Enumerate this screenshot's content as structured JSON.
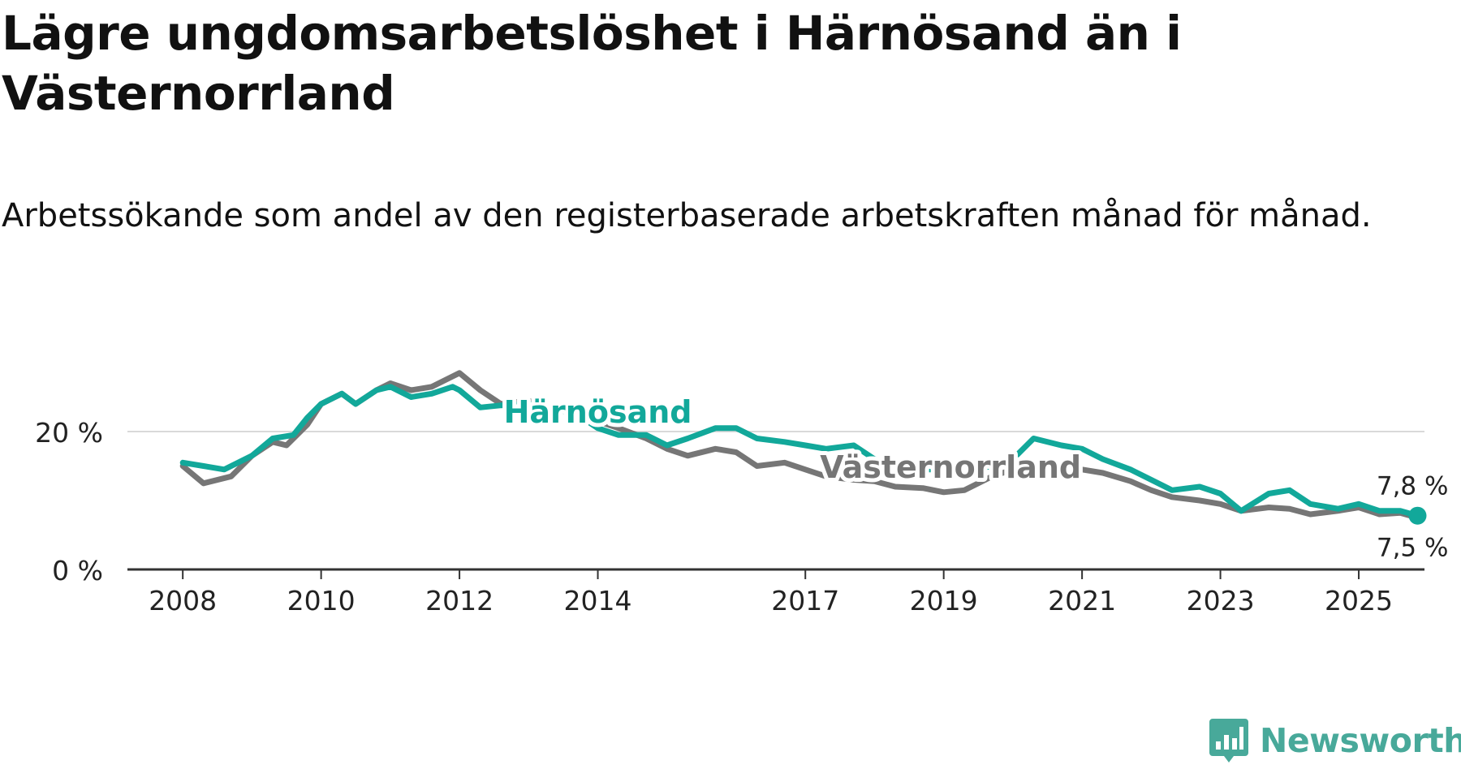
{
  "title": "Lägre ungdomsarbetslöshet i Härnösand än i Västernorrland",
  "subtitle": "Arbetssökande som andel av den registerbaserade arbetskraften månad för månad.",
  "brand": "Newsworthy",
  "colors": {
    "harnosand": "#12a89a",
    "vasternorrland": "#767676",
    "grid": "#d9d9d9",
    "axis": "#333333",
    "brand": "#48a99a"
  },
  "chart_data": {
    "type": "line",
    "title": "Lägre ungdomsarbetslöshet i Härnösand än i Västernorrland",
    "subtitle": "Arbetssökande som andel av den registerbaserade arbetskraften månad för månad.",
    "xlabel": "",
    "ylabel": "",
    "x_range": [
      2007.2,
      2025.95
    ],
    "ylim": [
      0,
      32
    ],
    "grid": true,
    "legend": "inline labels",
    "x_ticks": [
      2008,
      2010,
      2012,
      2014,
      2017,
      2019,
      2021,
      2023,
      2025
    ],
    "y_ticks": [
      {
        "value": 0,
        "label": "0 %"
      },
      {
        "value": 20,
        "label": "20 %"
      }
    ],
    "series": [
      {
        "name": "Västernorrland",
        "end_label": "7,5 %",
        "points": [
          [
            2008.0,
            15.0
          ],
          [
            2008.3,
            12.5
          ],
          [
            2008.7,
            13.5
          ],
          [
            2009.0,
            16.5
          ],
          [
            2009.3,
            18.5
          ],
          [
            2009.5,
            18.0
          ],
          [
            2009.8,
            21.0
          ],
          [
            2010.0,
            24.0
          ],
          [
            2010.3,
            25.5
          ],
          [
            2010.5,
            24.0
          ],
          [
            2010.8,
            26.0
          ],
          [
            2011.0,
            27.0
          ],
          [
            2011.3,
            26.0
          ],
          [
            2011.6,
            26.5
          ],
          [
            2011.9,
            28.0
          ],
          [
            2012.0,
            28.5
          ],
          [
            2012.3,
            26.0
          ],
          [
            2012.6,
            24.0
          ],
          [
            2013.0,
            24.5
          ],
          [
            2013.3,
            23.0
          ],
          [
            2013.7,
            23.8
          ],
          [
            2014.0,
            21.5
          ],
          [
            2014.3,
            20.5
          ],
          [
            2014.7,
            19.0
          ],
          [
            2015.0,
            17.5
          ],
          [
            2015.3,
            16.5
          ],
          [
            2015.7,
            17.5
          ],
          [
            2016.0,
            17.0
          ],
          [
            2016.3,
            15.0
          ],
          [
            2016.7,
            15.5
          ],
          [
            2017.0,
            14.5
          ],
          [
            2017.3,
            13.5
          ],
          [
            2017.7,
            13.0
          ],
          [
            2018.0,
            12.8
          ],
          [
            2018.3,
            12.0
          ],
          [
            2018.7,
            11.8
          ],
          [
            2019.0,
            11.2
          ],
          [
            2019.3,
            11.5
          ],
          [
            2019.7,
            13.5
          ],
          [
            2020.0,
            14.5
          ],
          [
            2020.3,
            15.5
          ],
          [
            2020.7,
            15.0
          ],
          [
            2021.0,
            14.5
          ],
          [
            2021.3,
            14.0
          ],
          [
            2021.7,
            12.8
          ],
          [
            2022.0,
            11.5
          ],
          [
            2022.3,
            10.5
          ],
          [
            2022.7,
            10.0
          ],
          [
            2023.0,
            9.5
          ],
          [
            2023.3,
            8.5
          ],
          [
            2023.7,
            9.0
          ],
          [
            2024.0,
            8.8
          ],
          [
            2024.3,
            8.0
          ],
          [
            2024.7,
            8.5
          ],
          [
            2025.0,
            9.0
          ],
          [
            2025.3,
            8.0
          ],
          [
            2025.6,
            8.2
          ],
          [
            2025.85,
            7.5
          ]
        ]
      },
      {
        "name": "Härnösand",
        "end_label": "7,8 %",
        "points": [
          [
            2008.0,
            15.5
          ],
          [
            2008.3,
            15.0
          ],
          [
            2008.6,
            14.5
          ],
          [
            2009.0,
            16.5
          ],
          [
            2009.3,
            19.0
          ],
          [
            2009.6,
            19.5
          ],
          [
            2009.8,
            22.0
          ],
          [
            2010.0,
            24.0
          ],
          [
            2010.3,
            25.5
          ],
          [
            2010.5,
            24.0
          ],
          [
            2010.8,
            26.0
          ],
          [
            2011.0,
            26.5
          ],
          [
            2011.3,
            25.0
          ],
          [
            2011.6,
            25.5
          ],
          [
            2011.9,
            26.5
          ],
          [
            2012.0,
            26.0
          ],
          [
            2012.3,
            23.5
          ],
          [
            2012.6,
            23.8
          ],
          [
            2013.0,
            24.0
          ],
          [
            2013.3,
            23.5
          ],
          [
            2013.7,
            22.5
          ],
          [
            2014.0,
            20.5
          ],
          [
            2014.3,
            19.5
          ],
          [
            2014.7,
            19.5
          ],
          [
            2015.0,
            18.0
          ],
          [
            2015.3,
            19.0
          ],
          [
            2015.7,
            20.5
          ],
          [
            2016.0,
            20.5
          ],
          [
            2016.3,
            19.0
          ],
          [
            2016.7,
            18.5
          ],
          [
            2017.0,
            18.0
          ],
          [
            2017.3,
            17.5
          ],
          [
            2017.7,
            18.0
          ],
          [
            2018.0,
            16.0
          ],
          [
            2018.3,
            15.0
          ],
          [
            2018.7,
            14.5
          ],
          [
            2019.0,
            14.5
          ],
          [
            2019.3,
            14.2
          ],
          [
            2019.7,
            15.0
          ],
          [
            2020.0,
            16.0
          ],
          [
            2020.3,
            19.0
          ],
          [
            2020.7,
            18.0
          ],
          [
            2021.0,
            17.5
          ],
          [
            2021.3,
            16.0
          ],
          [
            2021.7,
            14.5
          ],
          [
            2022.0,
            13.0
          ],
          [
            2022.3,
            11.5
          ],
          [
            2022.7,
            12.0
          ],
          [
            2023.0,
            11.0
          ],
          [
            2023.3,
            8.5
          ],
          [
            2023.7,
            11.0
          ],
          [
            2024.0,
            11.5
          ],
          [
            2024.3,
            9.5
          ],
          [
            2024.7,
            8.8
          ],
          [
            2025.0,
            9.5
          ],
          [
            2025.3,
            8.5
          ],
          [
            2025.6,
            8.5
          ],
          [
            2025.85,
            7.8
          ]
        ]
      }
    ],
    "annotations": [
      {
        "text": "Härnösand",
        "series": "Härnösand",
        "x": 2014.0,
        "y": 21.3
      },
      {
        "text": "Västernorrland",
        "series": "Västernorrland",
        "x": 2019.1,
        "y": 13.3
      }
    ]
  }
}
